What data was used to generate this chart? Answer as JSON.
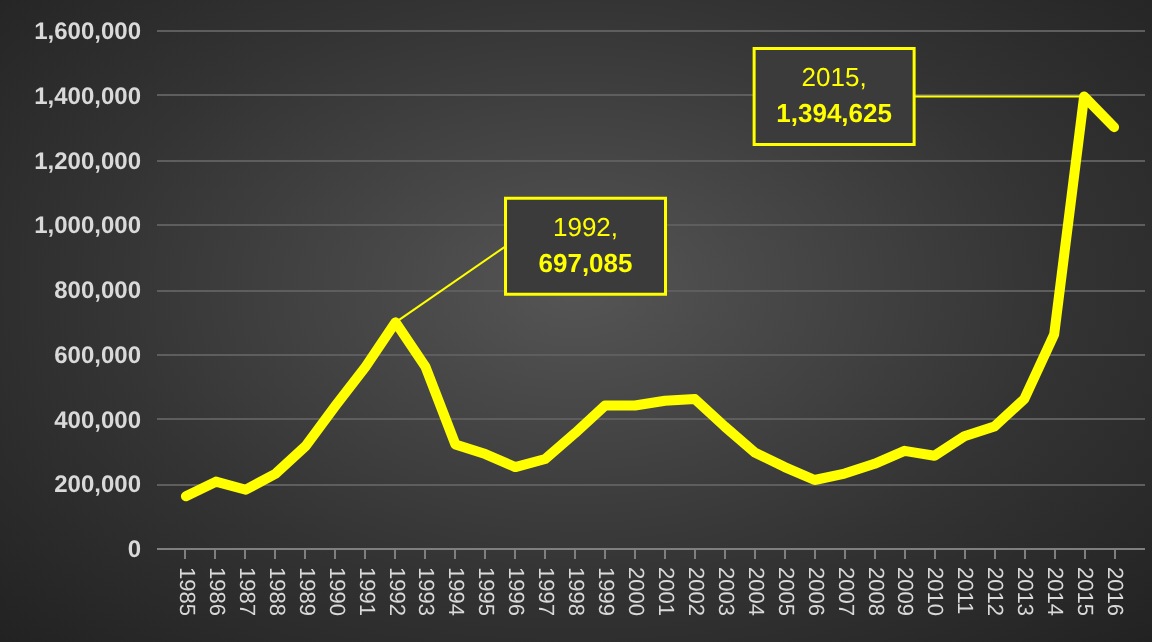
{
  "chart_data": {
    "type": "line",
    "categories": [
      "1985",
      "1986",
      "1987",
      "1988",
      "1989",
      "1990",
      "1991",
      "1992",
      "1993",
      "1994",
      "1995",
      "1996",
      "1997",
      "1998",
      "1999",
      "2000",
      "2001",
      "2002",
      "2003",
      "2004",
      "2005",
      "2006",
      "2007",
      "2008",
      "2009",
      "2010",
      "2011",
      "2012",
      "2013",
      "2014",
      "2015",
      "2016"
    ],
    "series": [
      {
        "color": "#ffff00",
        "values": [
          160000,
          205000,
          180000,
          230000,
          315000,
          440000,
          560000,
          697085,
          560000,
          320000,
          290000,
          250000,
          275000,
          355000,
          440000,
          440000,
          455000,
          460000,
          375000,
          295000,
          250000,
          210000,
          230000,
          260000,
          300000,
          285000,
          345000,
          375000,
          460000,
          660000,
          1394625,
          1300000
        ]
      }
    ],
    "ylim": [
      0,
      1600000
    ],
    "yticks": [
      0,
      {
        "value": 200000,
        "label": "200,000"
      },
      {
        "value": 400000,
        "label": "400,000"
      },
      {
        "value": 600000,
        "label": "600,000"
      },
      {
        "value": 800000,
        "label": "800,000"
      },
      {
        "value": 1000000,
        "label": "1,000,000"
      },
      {
        "value": 1200000,
        "label": "1,200,000"
      },
      {
        "value": 1400000,
        "label": "1,400,000"
      },
      {
        "value": 1600000,
        "label": "1,600,000"
      }
    ],
    "grid": "y",
    "annotations": [
      {
        "text": "1992, 697,085",
        "x": "1992",
        "y": 697085
      },
      {
        "text": "2015, 1,394,625",
        "x": "2015",
        "y": 1394625
      }
    ]
  }
}
